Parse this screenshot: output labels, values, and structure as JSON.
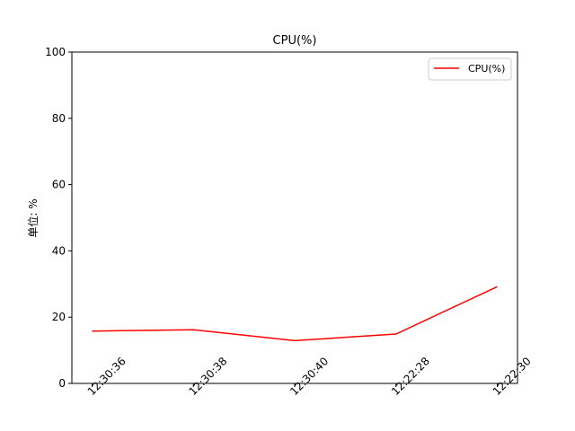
{
  "chart_data": {
    "type": "line",
    "title": "CPU(%)",
    "ylabel": "单位: %",
    "xlabel": "",
    "categories": [
      "12:30:36",
      "12:30:38",
      "12:30:40",
      "12:22:28",
      "12:22:30"
    ],
    "series": [
      {
        "name": "CPU(%)",
        "color": "#ff0000",
        "values": [
          15.8,
          16.2,
          12.9,
          14.9,
          29.2
        ]
      }
    ],
    "ylim": [
      0,
      100
    ],
    "yticks": [
      0,
      20,
      40,
      60,
      80,
      100
    ],
    "grid": false,
    "legend_position": "top-right"
  }
}
